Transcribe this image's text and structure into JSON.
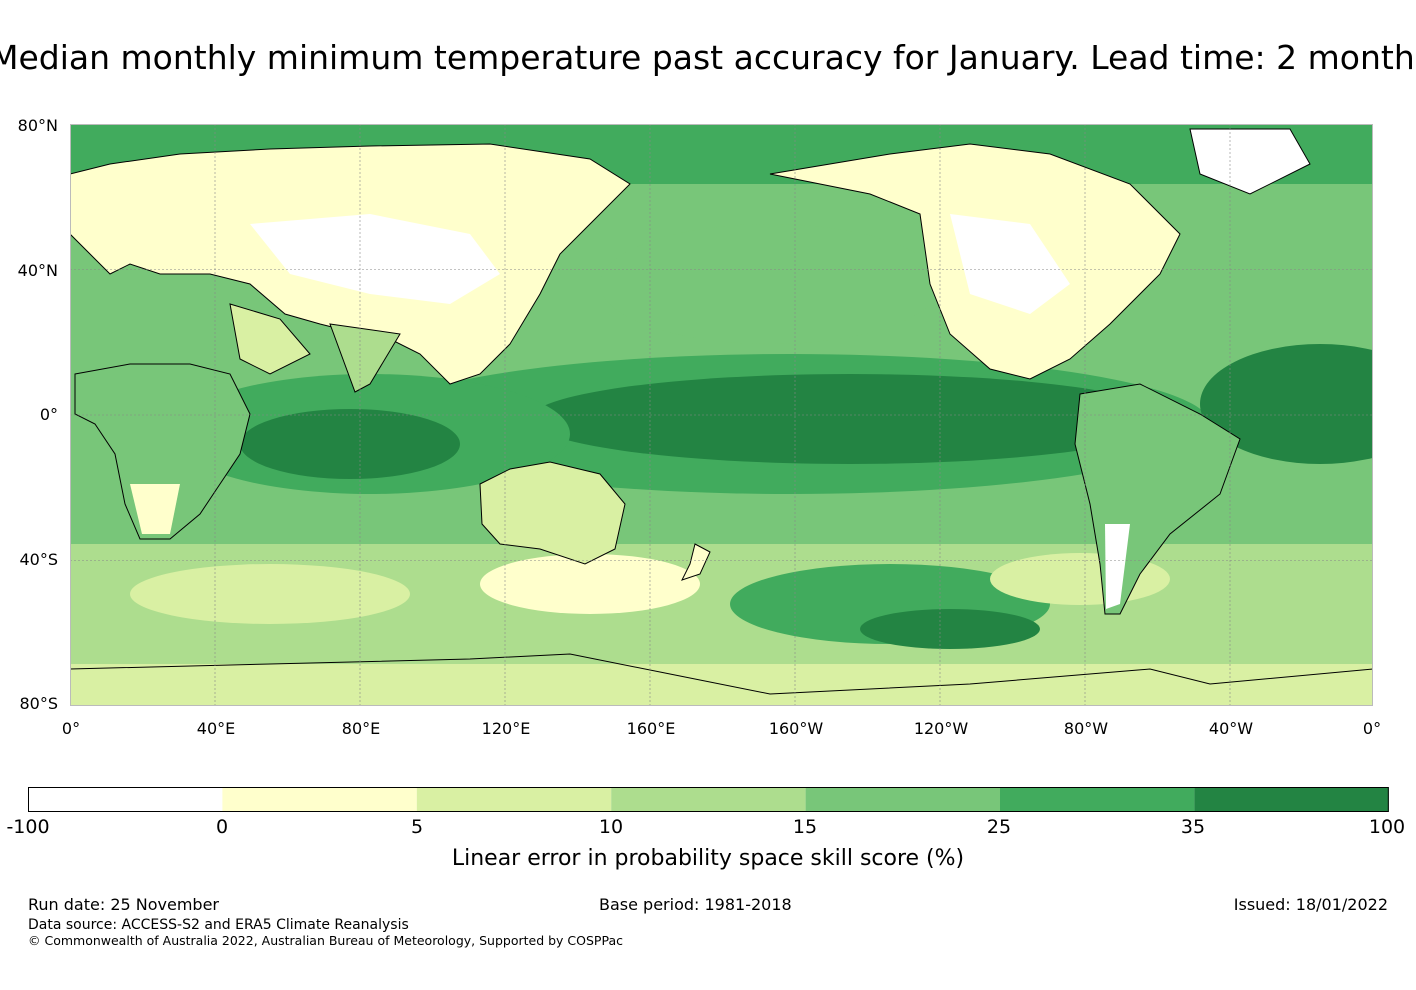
{
  "title": "Median monthly minimum temperature past accuracy for January. Lead time: 2 month",
  "map": {
    "lat_labels": [
      "80°N",
      "40°N",
      "0°",
      "40°S",
      "80°S"
    ],
    "lon_labels": [
      "0°",
      "40°E",
      "80°E",
      "120°E",
      "160°E",
      "160°W",
      "120°W",
      "80°W",
      "40°W",
      "0°"
    ],
    "ocean_color": "#41a65a",
    "land_color": "#ffffff"
  },
  "colorbar": {
    "ticks": [
      "-100",
      "0",
      "5",
      "10",
      "15",
      "25",
      "35",
      "100"
    ],
    "colors": [
      "#ffffff",
      "#ffffcc",
      "#d9f0a3",
      "#addd8e",
      "#78c679",
      "#41ab5d",
      "#238443"
    ],
    "label": "Linear error in probability space skill score (%)"
  },
  "footer": {
    "run_date": "Run date: 25 November",
    "base_period": "Base period: 1981-2018",
    "issued": "Issued: 18/01/2022",
    "data_source": "Data source: ACCESS-S2 and ERA5 Climate Reanalysis",
    "copyright": "© Commonwealth of Australia 2022, Australian Bureau of Meteorology, Supported by COSPPac"
  }
}
